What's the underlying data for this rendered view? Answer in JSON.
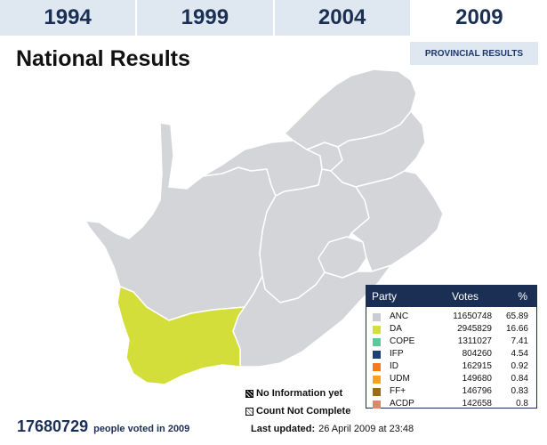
{
  "tabs": [
    {
      "label": "1994",
      "active": false
    },
    {
      "label": "1999",
      "active": false
    },
    {
      "label": "2004",
      "active": false
    },
    {
      "label": "2009",
      "active": true
    }
  ],
  "page_title": "National Results",
  "provincial_button": "PROVINCIAL RESULTS",
  "colors": {
    "header_navy": "#1b2f55",
    "tab_bg": "#dfe8f0",
    "map_gray": "#d3d5d8",
    "western_cape_highlight": "#d3de3a"
  },
  "results_table": {
    "headers": {
      "party": "Party",
      "votes": "Votes",
      "percent": "%"
    },
    "rows": [
      {
        "party": "ANC",
        "votes": "11650748",
        "percent": "65.89",
        "color": "#c9ccd0"
      },
      {
        "party": "DA",
        "votes": "2945829",
        "percent": "16.66",
        "color": "#d3de3a"
      },
      {
        "party": "COPE",
        "votes": "1311027",
        "percent": "7.41",
        "color": "#5cc99a"
      },
      {
        "party": "IFP",
        "votes": "804260",
        "percent": "4.54",
        "color": "#1e3f73"
      },
      {
        "party": "ID",
        "votes": "162915",
        "percent": "0.92",
        "color": "#f47a20"
      },
      {
        "party": "UDM",
        "votes": "149680",
        "percent": "0.84",
        "color": "#f9a11b"
      },
      {
        "party": "FF+",
        "votes": "146796",
        "percent": "0.83",
        "color": "#9a6b12"
      },
      {
        "party": "ACDP",
        "votes": "142658",
        "percent": "0.8",
        "color": "#e0866a"
      }
    ]
  },
  "legend": {
    "no_info": "No Information yet",
    "not_complete": "Count Not Complete"
  },
  "footer": {
    "total_voters": "17680729",
    "total_label": "people voted in 2009",
    "updated_label": "Last updated:",
    "updated_value": "26 April 2009 at 23:48"
  }
}
